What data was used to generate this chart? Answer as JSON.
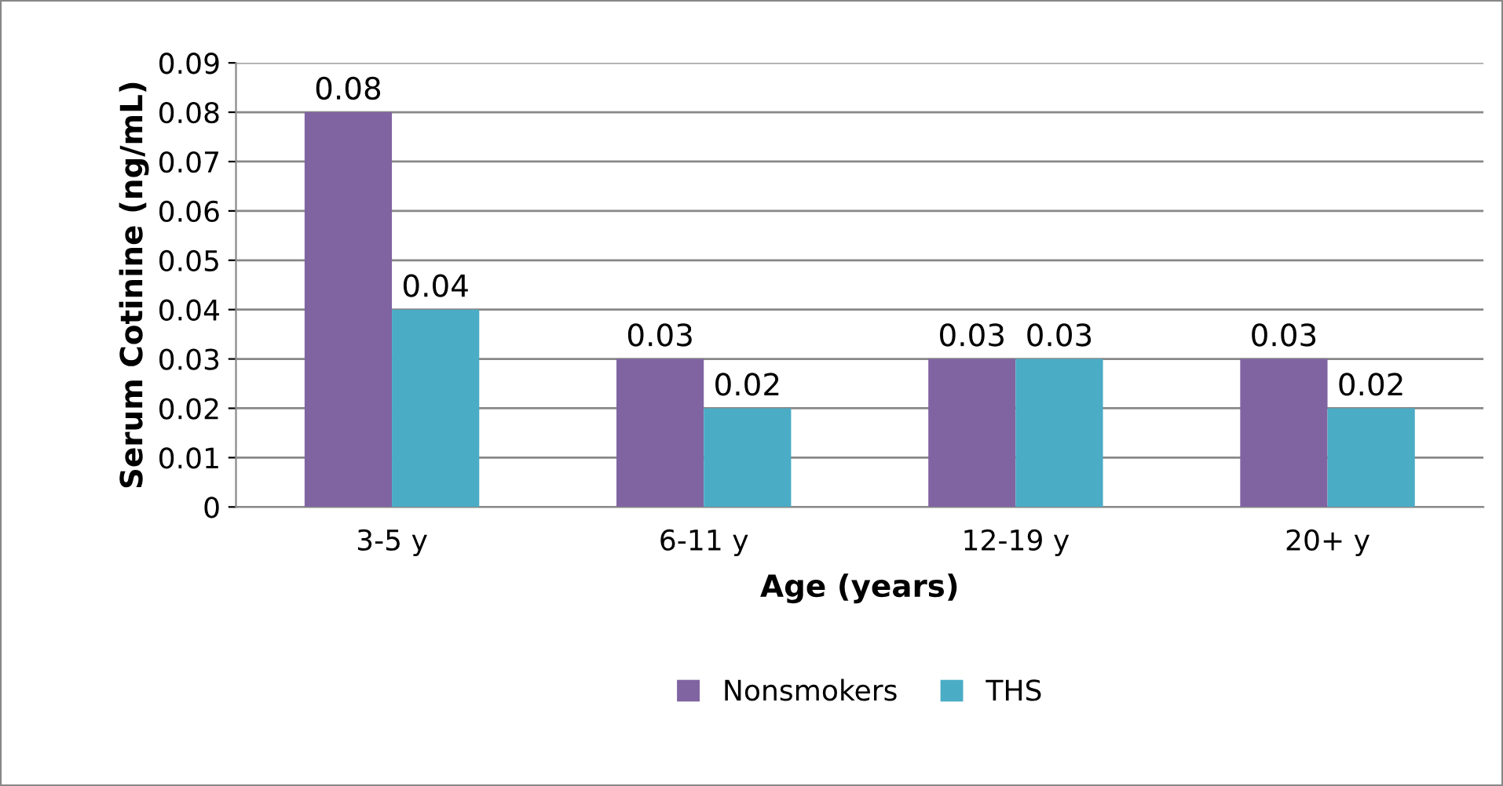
{
  "chart_data": {
    "type": "bar",
    "xlabel": "Age (years)",
    "ylabel": "Serum Cotinine (ng/mL)",
    "categories": [
      "3-5 y",
      "6-11 y",
      "12-19 y",
      "20+ y"
    ],
    "series": [
      {
        "name": "Nonsmokers",
        "color": "#8064a2",
        "values": [
          0.08,
          0.03,
          0.03,
          0.03
        ]
      },
      {
        "name": "THS",
        "color": "#4bacc6",
        "values": [
          0.04,
          0.02,
          0.03,
          0.02
        ]
      }
    ],
    "ylim": [
      0,
      0.09
    ],
    "yticks": [
      0,
      0.01,
      0.02,
      0.03,
      0.04,
      0.05,
      0.06,
      0.07,
      0.08,
      0.09
    ],
    "grid": "y",
    "legend": "bottom",
    "data_labels": true
  }
}
